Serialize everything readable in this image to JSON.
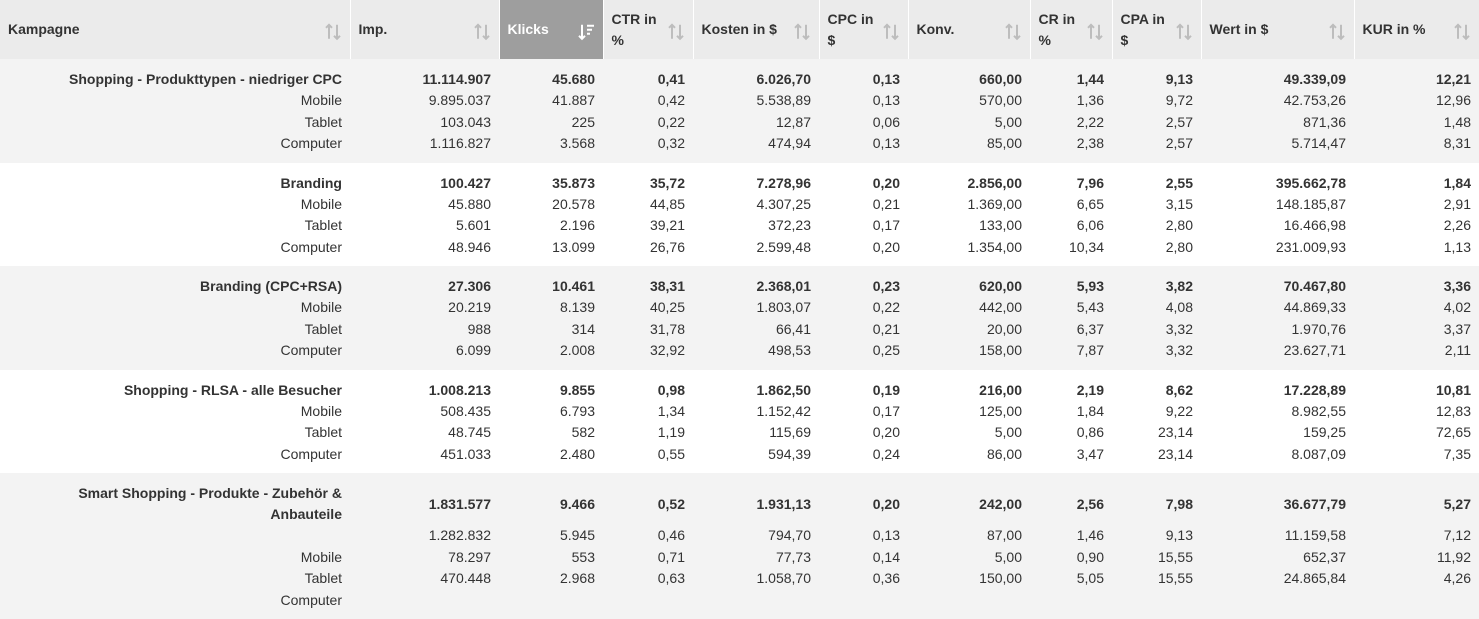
{
  "columns": [
    {
      "label": "Kampagne"
    },
    {
      "label": "Imp."
    },
    {
      "label": "Klicks"
    },
    {
      "label": "CTR in %"
    },
    {
      "label": "Kosten in $"
    },
    {
      "label": "CPC in $"
    },
    {
      "label": "Konv."
    },
    {
      "label": "CR in %"
    },
    {
      "label": "CPA in $"
    },
    {
      "label": "Wert in $"
    },
    {
      "label": "KUR in %"
    }
  ],
  "sorted_column": "Klicks",
  "campaigns": [
    {
      "name": "Shopping - Produkttypen - niedriger CPC",
      "total": [
        "11.114.907",
        "45.680",
        "0,41",
        "6.026,70",
        "0,13",
        "660,00",
        "1,44",
        "9,13",
        "49.339,09",
        "12,21"
      ],
      "rows": [
        {
          "device": "Mobile",
          "values": [
            "9.895.037",
            "41.887",
            "0,42",
            "5.538,89",
            "0,13",
            "570,00",
            "1,36",
            "9,72",
            "42.753,26",
            "12,96"
          ]
        },
        {
          "device": "Tablet",
          "values": [
            "103.043",
            "225",
            "0,22",
            "12,87",
            "0,06",
            "5,00",
            "2,22",
            "2,57",
            "871,36",
            "1,48"
          ]
        },
        {
          "device": "Computer",
          "values": [
            "1.116.827",
            "3.568",
            "0,32",
            "474,94",
            "0,13",
            "85,00",
            "2,38",
            "2,57",
            "5.714,47",
            "8,31"
          ]
        }
      ]
    },
    {
      "name": "Branding",
      "total": [
        "100.427",
        "35.873",
        "35,72",
        "7.278,96",
        "0,20",
        "2.856,00",
        "7,96",
        "2,55",
        "395.662,78",
        "1,84"
      ],
      "rows": [
        {
          "device": "Mobile",
          "values": [
            "45.880",
            "20.578",
            "44,85",
            "4.307,25",
            "0,21",
            "1.369,00",
            "6,65",
            "3,15",
            "148.185,87",
            "2,91"
          ]
        },
        {
          "device": "Tablet",
          "values": [
            "5.601",
            "2.196",
            "39,21",
            "372,23",
            "0,17",
            "133,00",
            "6,06",
            "2,80",
            "16.466,98",
            "2,26"
          ]
        },
        {
          "device": "Computer",
          "values": [
            "48.946",
            "13.099",
            "26,76",
            "2.599,48",
            "0,20",
            "1.354,00",
            "10,34",
            "2,80",
            "231.009,93",
            "1,13"
          ]
        }
      ]
    },
    {
      "name": "Branding (CPC+RSA)",
      "total": [
        "27.306",
        "10.461",
        "38,31",
        "2.368,01",
        "0,23",
        "620,00",
        "5,93",
        "3,82",
        "70.467,80",
        "3,36"
      ],
      "rows": [
        {
          "device": "Mobile",
          "values": [
            "20.219",
            "8.139",
            "40,25",
            "1.803,07",
            "0,22",
            "442,00",
            "5,43",
            "4,08",
            "44.869,33",
            "4,02"
          ]
        },
        {
          "device": "Tablet",
          "values": [
            "988",
            "314",
            "31,78",
            "66,41",
            "0,21",
            "20,00",
            "6,37",
            "3,32",
            "1.970,76",
            "3,37"
          ]
        },
        {
          "device": "Computer",
          "values": [
            "6.099",
            "2.008",
            "32,92",
            "498,53",
            "0,25",
            "158,00",
            "7,87",
            "3,32",
            "23.627,71",
            "2,11"
          ]
        }
      ]
    },
    {
      "name": "Shopping - RLSA - alle Besucher",
      "total": [
        "1.008.213",
        "9.855",
        "0,98",
        "1.862,50",
        "0,19",
        "216,00",
        "2,19",
        "8,62",
        "17.228,89",
        "10,81"
      ],
      "rows": [
        {
          "device": "Mobile",
          "values": [
            "508.435",
            "6.793",
            "1,34",
            "1.152,42",
            "0,17",
            "125,00",
            "1,84",
            "9,22",
            "8.982,55",
            "12,83"
          ]
        },
        {
          "device": "Tablet",
          "values": [
            "48.745",
            "582",
            "1,19",
            "115,69",
            "0,20",
            "5,00",
            "0,86",
            "23,14",
            "159,25",
            "72,65"
          ]
        },
        {
          "device": "Computer",
          "values": [
            "451.033",
            "2.480",
            "0,55",
            "594,39",
            "0,24",
            "86,00",
            "3,47",
            "23,14",
            "8.087,09",
            "7,35"
          ]
        }
      ]
    },
    {
      "name": "Smart Shopping - Produkte - Zubehör & Anbauteile",
      "total": [
        "1.831.577",
        "9.466",
        "0,52",
        "1.931,13",
        "0,20",
        "242,00",
        "2,56",
        "7,98",
        "36.677,79",
        "5,27"
      ],
      "rows": [
        {
          "device": "",
          "values": [
            "1.282.832",
            "5.945",
            "0,46",
            "794,70",
            "0,13",
            "87,00",
            "1,46",
            "9,13",
            "11.159,58",
            "7,12"
          ]
        },
        {
          "device": "Mobile",
          "values": [
            "78.297",
            "553",
            "0,71",
            "77,73",
            "0,14",
            "5,00",
            "0,90",
            "15,55",
            "652,37",
            "11,92"
          ]
        },
        {
          "device": "Tablet",
          "values": [
            "470.448",
            "2.968",
            "0,63",
            "1.058,70",
            "0,36",
            "150,00",
            "5,05",
            "15,55",
            "24.865,84",
            "4,26"
          ]
        },
        {
          "device": "Computer",
          "values": [
            "",
            "",
            "",
            "",
            "",
            "",
            "",
            "",
            "",
            ""
          ]
        }
      ]
    }
  ],
  "icons": {
    "sort": "sort-arrows-icon",
    "sorted_desc": "sort-desc-icon"
  }
}
